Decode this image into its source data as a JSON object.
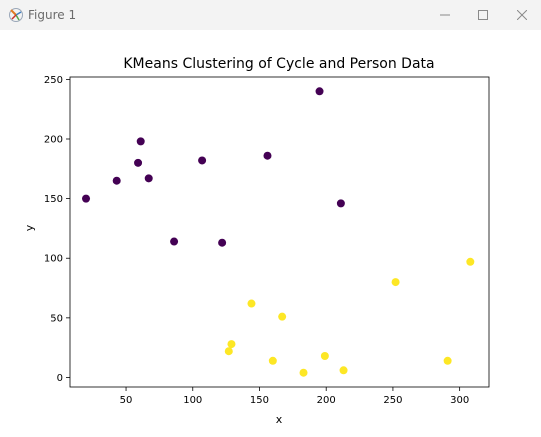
{
  "window": {
    "title": "Figure 1",
    "icon": "matplotlib-icon",
    "controls": {
      "minimize": "minimize-icon",
      "maximize": "maximize-icon",
      "close": "close-icon"
    }
  },
  "chart_data": {
    "type": "scatter",
    "title": "KMeans Clustering of Cycle and Person Data",
    "xlabel": "x",
    "ylabel": "y",
    "xlim": [
      8,
      322
    ],
    "ylim": [
      -8,
      252
    ],
    "xticks": [
      50,
      100,
      150,
      200,
      250,
      300
    ],
    "yticks": [
      0,
      50,
      100,
      150,
      200,
      250
    ],
    "grid": false,
    "colors": {
      "cluster_0": "#440154",
      "cluster_1": "#fde725"
    },
    "series": [
      {
        "color": "#440154",
        "points": [
          [
            20,
            150
          ],
          [
            43,
            165
          ],
          [
            59,
            180
          ],
          [
            61,
            198
          ],
          [
            67,
            167
          ],
          [
            86,
            114
          ],
          [
            107,
            182
          ],
          [
            122,
            113
          ],
          [
            156,
            186
          ],
          [
            195,
            240
          ],
          [
            211,
            146
          ]
        ]
      },
      {
        "color": "#fde725",
        "points": [
          [
            127,
            22
          ],
          [
            129,
            28
          ],
          [
            144,
            62
          ],
          [
            160,
            14
          ],
          [
            167,
            51
          ],
          [
            183,
            4
          ],
          [
            199,
            18
          ],
          [
            213,
            6
          ],
          [
            252,
            80
          ],
          [
            291,
            14
          ],
          [
            308,
            97
          ]
        ]
      }
    ]
  }
}
